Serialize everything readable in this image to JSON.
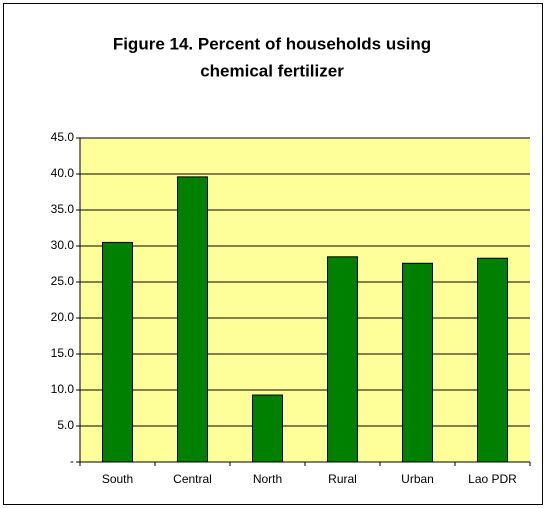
{
  "chart_data": {
    "type": "bar",
    "title": [
      "Figure 14. Percent of households using",
      "chemical fertilizer"
    ],
    "categories": [
      "South",
      "Central",
      "North",
      "Rural",
      "Urban",
      "Lao PDR"
    ],
    "values": [
      30.5,
      39.6,
      9.3,
      28.5,
      27.6,
      28.3
    ],
    "color": "#008000",
    "plot_background": "#ffff99",
    "ylim": [
      0,
      45
    ],
    "yticks": [
      {
        "value": 0,
        "label": "-"
      },
      {
        "value": 5,
        "label": "5.0"
      },
      {
        "value": 10,
        "label": "10.0"
      },
      {
        "value": 15,
        "label": "15.0"
      },
      {
        "value": 20,
        "label": "20.0"
      },
      {
        "value": 25,
        "label": "25.0"
      },
      {
        "value": 30,
        "label": "30.0"
      },
      {
        "value": 35,
        "label": "35.0"
      },
      {
        "value": 40,
        "label": "40.0"
      },
      {
        "value": 45,
        "label": "45.0"
      }
    ],
    "grid": true
  }
}
